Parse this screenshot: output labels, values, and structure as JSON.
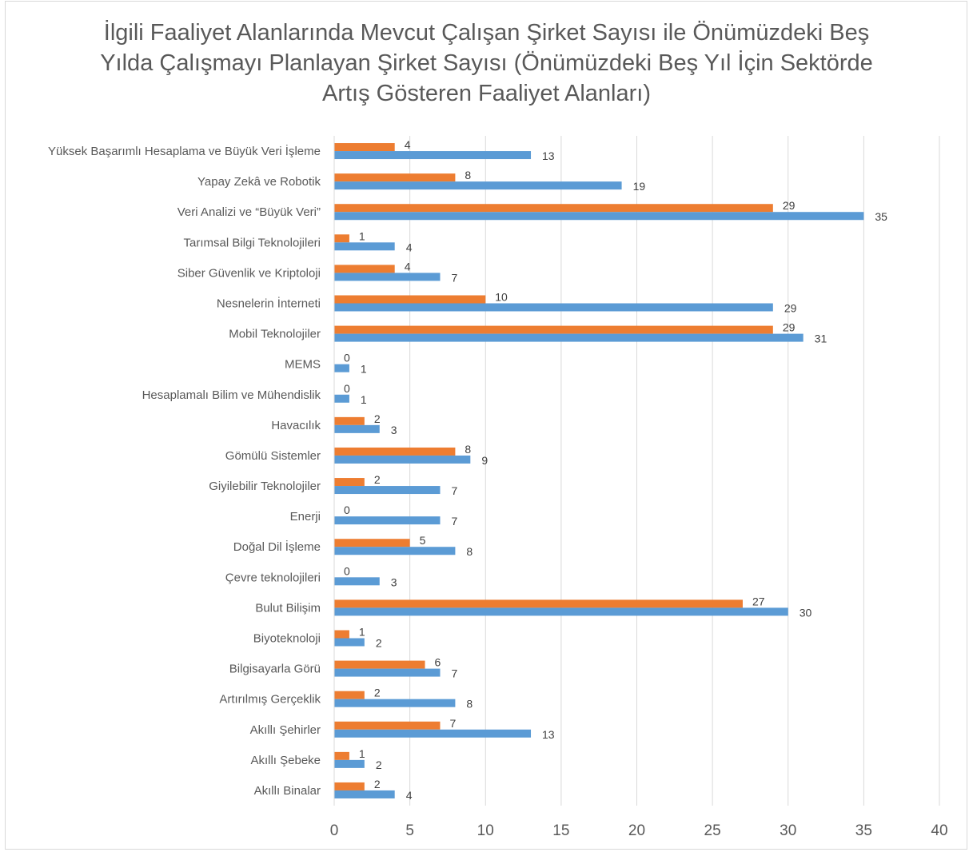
{
  "chart_data": {
    "type": "bar",
    "orientation": "horizontal",
    "title_lines": [
      "İlgili Faaliyet Alanlarında Mevcut Çalışan Şirket Sayısı ile Önümüzdeki Beş",
      "Yılda Çalışmayı Planlayan Şirket Sayısı (Önümüzdeki Beş Yıl İçin Sektörde",
      "Artış Gösteren Faaliyet Alanları)"
    ],
    "categories": [
      "Yüksek Başarımlı Hesaplama ve Büyük Veri İşleme",
      "Yapay Zekâ ve Robotik",
      "Veri Analizi ve “Büyük Veri”",
      "Tarımsal Bilgi Teknolojileri",
      "Siber Güvenlik ve Kriptoloji",
      "Nesnelerin İnterneti",
      "Mobil Teknolojiler",
      "MEMS",
      "Hesaplamalı Bilim ve Mühendislik",
      "Havacılık",
      "Gömülü Sistemler",
      "Giyilebilir Teknolojiler",
      "Enerji",
      "Doğal Dil İşleme",
      "Çevre teknolojileri",
      "Bulut Bilişim",
      "Biyoteknoloji",
      "Bilgisayarla Görü",
      "Artırılmış Gerçeklik",
      "Akıllı Şehirler",
      "Akıllı Şebeke",
      "Akıllı Binalar"
    ],
    "series": [
      {
        "color": "#ED7D31",
        "values": [
          4,
          8,
          29,
          1,
          4,
          10,
          29,
          0,
          0,
          2,
          8,
          2,
          0,
          5,
          0,
          27,
          1,
          6,
          2,
          7,
          1,
          2
        ]
      },
      {
        "color": "#5B9BD5",
        "values": [
          13,
          19,
          35,
          4,
          7,
          29,
          31,
          1,
          1,
          3,
          9,
          7,
          7,
          8,
          3,
          30,
          2,
          7,
          8,
          13,
          2,
          4
        ]
      }
    ],
    "xlim": [
      0,
      40
    ],
    "xticks": [
      0,
      5,
      10,
      15,
      20,
      25,
      30,
      35,
      40
    ],
    "grid": "vertical",
    "legend": "none"
  }
}
